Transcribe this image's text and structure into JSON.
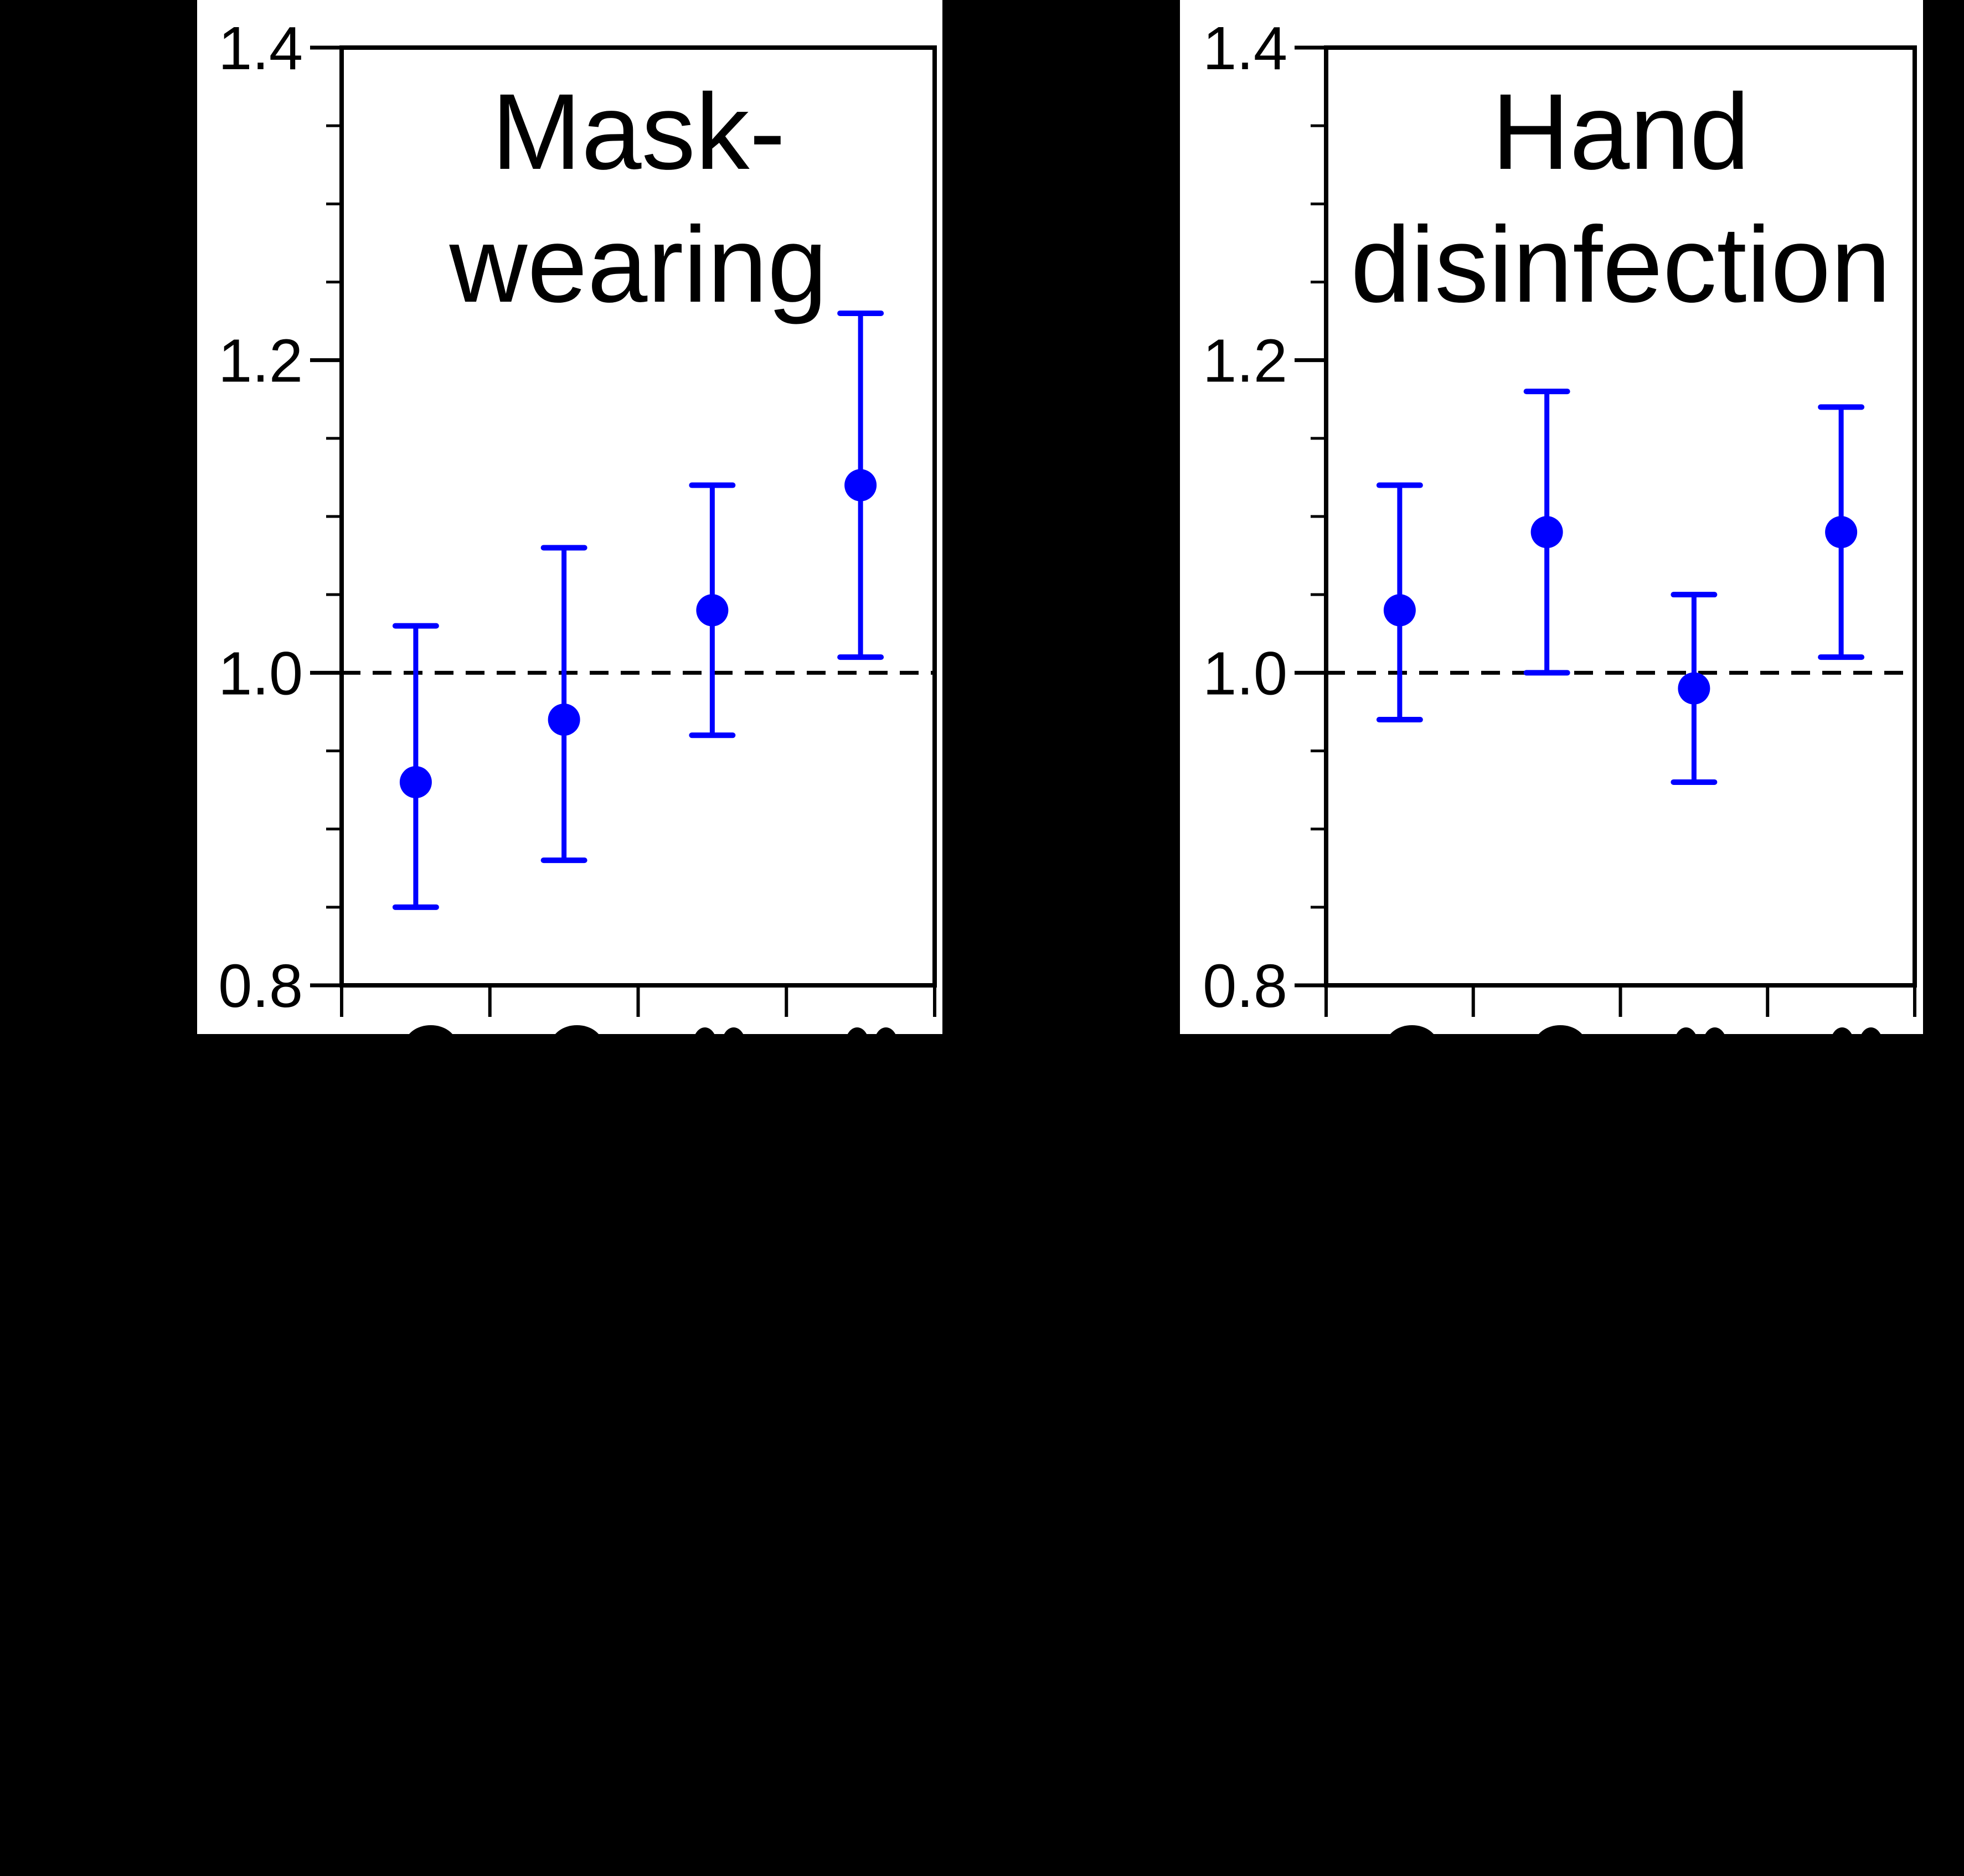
{
  "page": {
    "background_color": "#000000",
    "panel_color": "#ffffff"
  },
  "colors": {
    "data_blue": "#0000ff",
    "axis_black": "#000000",
    "reference_line_black": "#000000"
  },
  "chart_data": [
    {
      "type": "scatter",
      "title_lines": [
        "Mask-",
        "wearing"
      ],
      "ylim": [
        0.8,
        1.4
      ],
      "ytick_values": [
        0.8,
        1.0,
        1.2,
        1.4
      ],
      "ytick_labels": [
        "0.8",
        "1.0",
        "1.2",
        "1.4"
      ],
      "minor_tick_step": 0.05,
      "reference_line_y": 1.0,
      "reference_line_style": "dashed",
      "grid": false,
      "legend": null,
      "x_axis": {
        "tick_count": 5,
        "labels_visible": false,
        "clipped_label_fragments": 4
      },
      "series": [
        {
          "name": "point estimate with error bars",
          "values": [
            0.93,
            0.97,
            1.04,
            1.12
          ],
          "ci_low": [
            0.85,
            0.88,
            0.96,
            1.01
          ],
          "ci_high": [
            1.03,
            1.08,
            1.12,
            1.23
          ]
        }
      ]
    },
    {
      "type": "scatter",
      "title_lines": [
        "Hand",
        "disinfection"
      ],
      "ylim": [
        0.8,
        1.4
      ],
      "ytick_values": [
        0.8,
        1.0,
        1.2,
        1.4
      ],
      "ytick_labels": [
        "0.8",
        "1.0",
        "1.2",
        "1.4"
      ],
      "minor_tick_step": 0.05,
      "reference_line_y": 1.0,
      "reference_line_style": "dashed",
      "grid": false,
      "legend": null,
      "x_axis": {
        "tick_count": 5,
        "labels_visible": false,
        "clipped_label_fragments": 4
      },
      "series": [
        {
          "name": "point estimate with error bars",
          "values": [
            1.04,
            1.09,
            0.99,
            1.09
          ],
          "ci_low": [
            0.97,
            1.0,
            0.93,
            1.01
          ],
          "ci_high": [
            1.12,
            1.18,
            1.05,
            1.17
          ]
        }
      ]
    }
  ]
}
